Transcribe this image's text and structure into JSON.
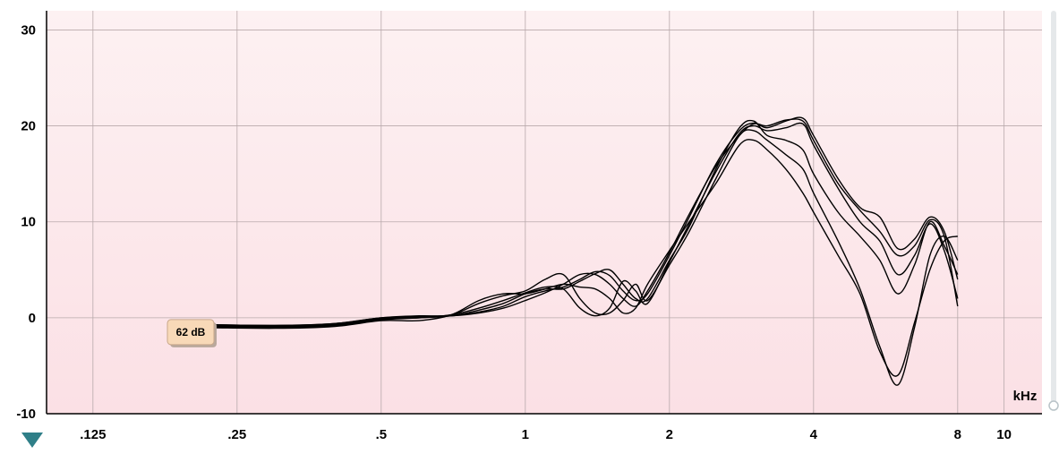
{
  "chart_data": {
    "type": "line",
    "title": "",
    "xlabel": "",
    "ylabel": "",
    "x_unit": "kHz",
    "x_scale": "log",
    "xlim": [
      0.1,
      12
    ],
    "ylim": [
      -10,
      32
    ],
    "x_ticks": [
      {
        "value": 0.125,
        "label": ".125"
      },
      {
        "value": 0.25,
        "label": ".25"
      },
      {
        "value": 0.5,
        "label": ".5"
      },
      {
        "value": 1,
        "label": "1"
      },
      {
        "value": 2,
        "label": "2"
      },
      {
        "value": 4,
        "label": "4"
      },
      {
        "value": 8,
        "label": "8"
      },
      {
        "value": 10,
        "label": "10"
      }
    ],
    "y_ticks": [
      {
        "value": -10,
        "label": "-10"
      },
      {
        "value": 0,
        "label": "0"
      },
      {
        "value": 10,
        "label": "10"
      },
      {
        "value": 20,
        "label": "20"
      },
      {
        "value": 30,
        "label": "30"
      }
    ],
    "grid": true,
    "level_tag": "62 dB",
    "level_tag_x": 0.2,
    "level_tag_y": -1.5,
    "colors": {
      "plot_top": "#fdf1f2",
      "plot_bottom": "#fbe0e5",
      "grid": "#b8a9ab",
      "line": "#000000",
      "tag_fill": "#f8d9b8",
      "marker": "#2f7f88"
    },
    "series": [
      {
        "x": [
          0.2,
          0.3,
          0.4,
          0.5,
          0.6,
          0.7,
          0.8,
          0.9,
          1.0,
          1.1,
          1.2,
          1.3,
          1.4,
          1.5,
          1.6,
          1.7,
          1.8,
          2.0,
          2.2,
          2.5,
          2.8,
          3.0,
          3.2,
          3.5,
          3.8,
          4.0,
          4.5,
          5.0,
          5.5,
          6.0,
          6.5,
          7.0,
          7.5,
          8.0
        ],
        "y": [
          -0.7,
          -0.8,
          -0.6,
          0.0,
          0.1,
          0.2,
          0.6,
          1.2,
          2.2,
          2.8,
          3.2,
          4.0,
          4.8,
          4.4,
          2.8,
          1.8,
          2.5,
          6.5,
          10.5,
          16.0,
          19.5,
          20.3,
          19.8,
          20.5,
          20.8,
          19.0,
          14.5,
          11.5,
          10.5,
          7.2,
          8.2,
          10.5,
          9.0,
          4.0
        ]
      },
      {
        "x": [
          0.2,
          0.3,
          0.4,
          0.5,
          0.6,
          0.7,
          0.8,
          0.9,
          1.0,
          1.1,
          1.2,
          1.3,
          1.4,
          1.5,
          1.6,
          1.7,
          1.8,
          2.0,
          2.2,
          2.5,
          2.8,
          3.0,
          3.2,
          3.5,
          3.8,
          4.0,
          4.5,
          5.0,
          5.5,
          6.0,
          6.5,
          7.0,
          7.5,
          8.0
        ],
        "y": [
          -0.8,
          -0.9,
          -0.7,
          -0.1,
          0.0,
          0.2,
          0.8,
          1.5,
          2.5,
          3.0,
          3.0,
          3.8,
          4.6,
          5.0,
          3.5,
          2.0,
          2.0,
          6.0,
          9.5,
          15.5,
          19.8,
          20.5,
          19.0,
          18.5,
          17.5,
          15.0,
          11.0,
          8.5,
          6.0,
          2.5,
          5.5,
          10.0,
          7.5,
          4.5
        ]
      },
      {
        "x": [
          0.2,
          0.3,
          0.4,
          0.5,
          0.6,
          0.7,
          0.8,
          0.9,
          1.0,
          1.1,
          1.2,
          1.3,
          1.4,
          1.5,
          1.6,
          1.7,
          1.8,
          2.0,
          2.2,
          2.5,
          2.8,
          3.0,
          3.2,
          3.5,
          3.8,
          4.0,
          4.5,
          5.0,
          5.5,
          6.0,
          6.5,
          7.0,
          7.5,
          8.0
        ],
        "y": [
          -0.9,
          -1.0,
          -0.8,
          -0.2,
          0.1,
          0.3,
          1.5,
          2.3,
          2.8,
          4.0,
          4.5,
          2.0,
          0.5,
          0.5,
          1.8,
          3.5,
          1.8,
          5.5,
          9.0,
          14.5,
          19.0,
          19.5,
          18.5,
          17.0,
          15.5,
          13.0,
          8.0,
          3.0,
          -3.0,
          -7.0,
          -1.0,
          6.5,
          8.5,
          6.0
        ]
      },
      {
        "x": [
          0.2,
          0.3,
          0.4,
          0.5,
          0.6,
          0.7,
          0.8,
          0.9,
          1.0,
          1.1,
          1.2,
          1.3,
          1.4,
          1.5,
          1.6,
          1.7,
          1.8,
          2.0,
          2.2,
          2.5,
          2.8,
          3.0,
          3.2,
          3.5,
          3.8,
          4.0,
          4.5,
          5.0,
          5.5,
          6.0,
          6.5,
          7.0,
          7.5,
          8.0
        ],
        "y": [
          -1.0,
          -1.1,
          -0.9,
          -0.3,
          -0.3,
          0.3,
          1.8,
          2.5,
          2.5,
          3.0,
          3.5,
          3.2,
          3.0,
          2.0,
          0.5,
          1.0,
          3.5,
          7.0,
          10.0,
          14.0,
          18.0,
          18.5,
          17.5,
          15.5,
          13.0,
          11.0,
          6.5,
          2.5,
          -3.5,
          -6.0,
          -0.5,
          5.0,
          8.0,
          8.5
        ]
      },
      {
        "x": [
          0.2,
          0.3,
          0.4,
          0.5,
          0.6,
          0.7,
          0.8,
          0.9,
          1.0,
          1.1,
          1.2,
          1.3,
          1.4,
          1.5,
          1.6,
          1.7,
          1.8,
          2.0,
          2.2,
          2.5,
          2.8,
          3.0,
          3.2,
          3.5,
          3.8,
          4.0,
          4.5,
          5.0,
          5.5,
          6.0,
          6.5,
          7.0,
          7.5,
          8.0
        ],
        "y": [
          -0.8,
          -0.9,
          -0.7,
          -0.2,
          0.0,
          0.3,
          1.0,
          1.8,
          2.6,
          3.2,
          3.0,
          1.0,
          0.2,
          1.0,
          3.8,
          2.8,
          1.5,
          5.8,
          9.8,
          15.2,
          19.2,
          20.0,
          19.5,
          19.8,
          20.2,
          18.0,
          13.5,
          10.0,
          8.0,
          4.5,
          6.5,
          9.8,
          7.0,
          2.0
        ]
      },
      {
        "x": [
          0.2,
          0.3,
          0.4,
          0.5,
          0.6,
          0.7,
          0.8,
          0.9,
          1.0,
          1.1,
          1.2,
          1.3,
          1.4,
          1.5,
          1.6,
          1.7,
          1.8,
          2.0,
          2.2,
          2.5,
          2.8,
          3.0,
          3.2,
          3.5,
          3.8,
          4.0,
          4.5,
          5.0,
          5.5,
          6.0,
          6.5,
          7.0,
          7.5,
          8.0
        ],
        "y": [
          -0.7,
          -0.8,
          -0.6,
          0.0,
          0.2,
          0.2,
          0.5,
          1.0,
          1.8,
          2.6,
          3.5,
          4.5,
          4.5,
          3.5,
          2.0,
          1.2,
          2.8,
          6.8,
          10.8,
          15.8,
          19.0,
          20.2,
          20.0,
          20.6,
          20.5,
          18.5,
          14.0,
          11.2,
          9.0,
          6.5,
          7.5,
          10.2,
          8.5,
          1.2
        ]
      }
    ]
  }
}
